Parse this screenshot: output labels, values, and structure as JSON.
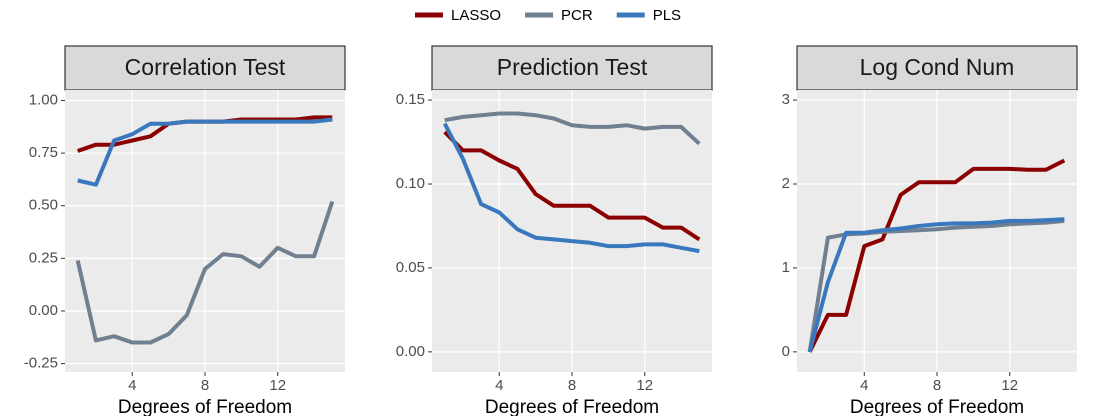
{
  "chart_data": [
    {
      "type": "line",
      "title": "Correlation Test",
      "xlabel": "Degrees of Freedom",
      "legend": "top",
      "grid": true,
      "x": [
        1,
        2,
        3,
        4,
        5,
        6,
        7,
        8,
        9,
        10,
        11,
        12,
        13,
        14,
        15
      ],
      "xlim": [
        0.3,
        15.7
      ],
      "xticks": [
        4,
        8,
        12
      ],
      "ylim": [
        -0.29,
        1.05
      ],
      "yticks": [
        {
          "value": -0.25,
          "label": "-0.25"
        },
        {
          "value": 0,
          "label": "0.00"
        },
        0.25,
        {
          "value": 0.5,
          "label": "0.50"
        },
        0.75,
        {
          "value": 1,
          "label": "1.00"
        }
      ],
      "series": [
        {
          "name": "LASSO",
          "color": "#8b0000",
          "values": [
            0.76,
            0.79,
            0.79,
            0.81,
            0.83,
            0.89,
            0.9,
            0.9,
            0.9,
            0.91,
            0.91,
            0.91,
            0.91,
            0.92,
            0.92
          ]
        },
        {
          "name": "PCR",
          "color": "#708090",
          "values": [
            0.24,
            -0.14,
            -0.12,
            -0.15,
            -0.15,
            -0.11,
            -0.02,
            0.2,
            0.27,
            0.26,
            0.21,
            0.3,
            0.26,
            0.26,
            0.52
          ]
        },
        {
          "name": "PLS",
          "color": "#3a78bd",
          "values": [
            0.62,
            0.6,
            0.81,
            0.84,
            0.89,
            0.89,
            0.9,
            0.9,
            0.9,
            0.9,
            0.9,
            0.9,
            0.9,
            0.9,
            0.91
          ]
        }
      ]
    },
    {
      "type": "line",
      "title": "Prediction Test",
      "xlabel": "Degrees of Freedom",
      "grid": true,
      "x": [
        1,
        2,
        3,
        4,
        5,
        6,
        7,
        8,
        9,
        10,
        11,
        12,
        13,
        14,
        15
      ],
      "xlim": [
        0.3,
        15.7
      ],
      "xticks": [
        4,
        8,
        12
      ],
      "ylim": [
        -0.012,
        0.156
      ],
      "yticks": [
        {
          "value": 0,
          "label": "0.00"
        },
        0.05,
        {
          "value": 0.1,
          "label": "0.10"
        },
        0.15
      ],
      "series": [
        {
          "name": "LASSO",
          "color": "#8b0000",
          "values": [
            0.131,
            0.12,
            0.12,
            0.114,
            0.109,
            0.094,
            0.087,
            0.087,
            0.087,
            0.08,
            0.08,
            0.08,
            0.074,
            0.074,
            0.067
          ]
        },
        {
          "name": "PCR",
          "color": "#708090",
          "values": [
            0.138,
            0.14,
            0.141,
            0.142,
            0.142,
            0.141,
            0.139,
            0.135,
            0.134,
            0.134,
            0.135,
            0.133,
            0.134,
            0.134,
            0.124
          ]
        },
        {
          "name": "PLS",
          "color": "#3a78bd",
          "values": [
            0.136,
            0.115,
            0.088,
            0.083,
            0.073,
            0.068,
            0.067,
            0.066,
            0.065,
            0.063,
            0.063,
            0.064,
            0.064,
            0.062,
            0.06
          ]
        }
      ]
    },
    {
      "type": "line",
      "title": "Log Cond Num",
      "xlabel": "Degrees of Freedom",
      "grid": true,
      "x": [
        1,
        2,
        3,
        4,
        5,
        6,
        7,
        8,
        9,
        10,
        11,
        12,
        13,
        14,
        15
      ],
      "xlim": [
        0.3,
        15.7
      ],
      "xticks": [
        4,
        8,
        12
      ],
      "ylim": [
        -0.24,
        3.12
      ],
      "yticks": [
        0,
        1,
        2,
        3
      ],
      "series": [
        {
          "name": "LASSO",
          "color": "#8b0000",
          "values": [
            0,
            0.44,
            0.44,
            1.26,
            1.34,
            1.87,
            2.02,
            2.02,
            2.02,
            2.18,
            2.18,
            2.18,
            2.17,
            2.17,
            2.28
          ]
        },
        {
          "name": "PCR",
          "color": "#708090",
          "values": [
            0,
            1.36,
            1.4,
            1.41,
            1.43,
            1.44,
            1.45,
            1.46,
            1.48,
            1.49,
            1.5,
            1.52,
            1.53,
            1.54,
            1.56
          ]
        },
        {
          "name": "PLS",
          "color": "#3a78bd",
          "values": [
            0,
            0.83,
            1.42,
            1.42,
            1.45,
            1.47,
            1.5,
            1.52,
            1.53,
            1.53,
            1.54,
            1.56,
            1.56,
            1.57,
            1.58
          ]
        }
      ]
    }
  ]
}
